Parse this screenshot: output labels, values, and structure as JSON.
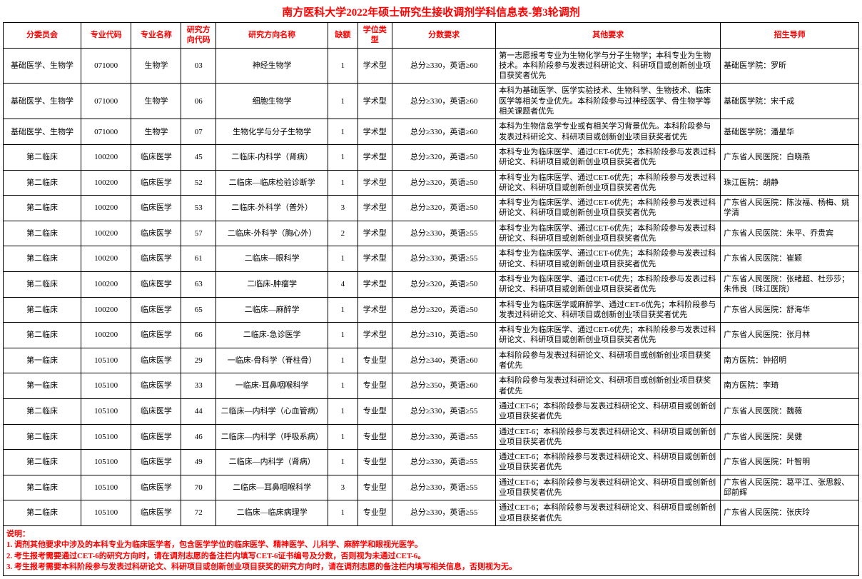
{
  "title": "南方医科大学2022年硕士研究生接收调剂学科信息表-第3轮调剂",
  "title_color": "#ff0000",
  "header_color": "#ff0000",
  "notes_color": "#ff0000",
  "columns": [
    "分委员会",
    "专业代码",
    "专业名称",
    "研究方向代码",
    "研究方向名称",
    "缺额",
    "学位类型",
    "分数要求",
    "其他要求",
    "招生导师"
  ],
  "rows": [
    [
      "基础医学、生物学",
      "071000",
      "生物学",
      "03",
      "神经生物学",
      "1",
      "学术型",
      "总分≥330，英语≥60",
      "第一志愿报考专业为生物化学与分子生物学；本科专业为生物技术。本科阶段参与发表过科研论文、科研项目或创新创业项目获奖者优先",
      "基础医学院：罗昕"
    ],
    [
      "基础医学、生物学",
      "071000",
      "生物学",
      "06",
      "细胞生物学",
      "1",
      "学术型",
      "总分≥330，英语≥60",
      "本科为基础医学、医学实验技术、生物科学、生物技术、临床医学等相关专业优先。本科阶段参与过神经医学、骨生物学等相关课题者优先",
      "基础医学院：宋千成"
    ],
    [
      "基础医学、生物学",
      "071000",
      "生物学",
      "07",
      "生物化学与分子生物学",
      "1",
      "学术型",
      "总分≥330，英语≥60",
      "本科为生物信息学专业或有相关学习背景优先。本科阶段参与发表过科研论文、科研项目或创新创业项目获奖者优先",
      "基础医学院：潘星华"
    ],
    [
      "第二临床",
      "100200",
      "临床医学",
      "45",
      "二临床-内科学（肾病）",
      "1",
      "学术型",
      "总分≥320，英语≥50",
      "本科专业为临床医学、通过CET-6优先；本科阶段参与发表过科研论文、科研项目或创新创业项目获奖者优先",
      "广东省人民医院：白晓燕"
    ],
    [
      "第二临床",
      "100200",
      "临床医学",
      "52",
      "二临床—临床检验诊断学",
      "1",
      "学术型",
      "总分≥320，英语≥50",
      "本科专业为临床医学、通过CET-6优先；本科阶段参与发表过科研论文、科研项目或创新创业项目获奖者优先",
      "珠江医院：胡静"
    ],
    [
      "第二临床",
      "100200",
      "临床医学",
      "53",
      "二临床-外科学（普外）",
      "3",
      "学术型",
      "总分≥320，英语≥50",
      "本科专业为临床医学、通过CET-6优先；本科阶段参与发表过科研论文、科研项目或创新创业项目获奖者优先",
      "广东省人民医院：陈汝福、杨梅、姚学清"
    ],
    [
      "第二临床",
      "100200",
      "临床医学",
      "57",
      "二临床-外科学（胸心外）",
      "2",
      "学术型",
      "总分≥330，英语≥55",
      "本科专业为临床医学、通过CET-6优先；本科阶段参与发表过科研论文、科研项目或创新创业项目获奖者优先",
      "广东省人民医院：朱平、乔贵宾"
    ],
    [
      "第二临床",
      "100200",
      "临床医学",
      "61",
      "二临床—眼科学",
      "1",
      "学术型",
      "总分≥330，英语≥55",
      "本科专业为临床医学、通过CET-6优先；本科阶段参与发表过科研论文、科研项目或创新创业项目获奖者优先",
      "广东省人民医院：崔颖"
    ],
    [
      "第二临床",
      "100200",
      "临床医学",
      "63",
      "二临床-肿瘤学",
      "4",
      "学术型",
      "总分≥320，英语≥50",
      "本科专业为临床医学、通过CET-6优先；本科阶段参与发表过科研论文、科研项目或创新创业项目获奖者优先",
      "广东省人民医院：张绪超、杜莎莎；朱伟良（珠江医院）"
    ],
    [
      "第二临床",
      "100200",
      "临床医学",
      "65",
      "二临床—麻醉学",
      "1",
      "学术型",
      "总分≥320，英语≥50",
      "本科专业为临床医学或麻醉学、通过CET-6优先；本科阶段参与发表过科研论文、科研项目或创新创业项目获奖者优先",
      "广东省人民医院：舒海华"
    ],
    [
      "第二临床",
      "100200",
      "临床医学",
      "66",
      "二临床-急诊医学",
      "1",
      "学术型",
      "总分≥310，英语≥50",
      "本科专业为临床医学、通过CET-6优先；本科阶段参与发表过科研论文、科研项目或创新创业项目获奖者优先",
      "广东省人民医院：张月林"
    ],
    [
      "第一临床",
      "105100",
      "临床医学",
      "29",
      "一临床-骨科学（脊柱骨）",
      "1",
      "专业型",
      "总分≥340，英语≥60",
      "本科阶段参与发表过科研论文、科研项目或创新创业项目获奖者优先",
      "南方医院：钟招明"
    ],
    [
      "第一临床",
      "105100",
      "临床医学",
      "33",
      "一临床-耳鼻咽喉科学",
      "1",
      "专业型",
      "总分≥350，英语≥60",
      "本科阶段参与发表过科研论文、科研项目或创新创业项目获奖者优先",
      "南方医院：李琦"
    ],
    [
      "第二临床",
      "105100",
      "临床医学",
      "44",
      "二临床—内科学（心血管病）",
      "1",
      "专业型",
      "总分≥330，英语≥55",
      "通过CET-6；本科阶段参与发表过科研论文、科研项目或创新创业项目获奖者优先",
      "广东省人民医院：魏薇"
    ],
    [
      "第二临床",
      "105100",
      "临床医学",
      "46",
      "二临床—内科学（呼吸系病）",
      "1",
      "专业型",
      "总分≥330，英语≥55",
      "通过CET-6；本科阶段参与发表过科研论文、科研项目或创新创业项目获奖者优先",
      "广东省人民医院：吴健"
    ],
    [
      "第二临床",
      "105100",
      "临床医学",
      "49",
      "二临床—内科学（肾病）",
      "1",
      "专业型",
      "总分≥330，英语≥55",
      "通过CET-6；本科阶段参与发表过科研论文、科研项目或创新创业项目获奖者优先",
      "广东省人民医院：叶智明"
    ],
    [
      "第二临床",
      "105100",
      "临床医学",
      "70",
      "二临床—耳鼻咽喉科学",
      "3",
      "专业型",
      "总分≥330，英语≥55",
      "通过CET-6；本科阶段参与发表过科研论文、科研项目或创新创业项目获奖者优先",
      "广东省人民医院：葛平江、张思毅、邱前辉"
    ],
    [
      "第二临床",
      "105100",
      "临床医学",
      "72",
      "二临床—临床病理学",
      "1",
      "专业型",
      "总分≥330，英语≥55",
      "通过CET-6；本科阶段参与发表过科研论文、科研项目或创新创业项目获奖者优先",
      "广东省人民医院：张庆玲"
    ]
  ],
  "notes_label": "说明：",
  "notes": [
    "1. 调剂其他要求中涉及的本科专业为临床医学者，包含医学学位的临床医学、精神医学、儿科学、麻醉学和眼视光医学。",
    "2. 考生报考需要通过CET-6的研究方向时，请在调剂志愿的备注栏内填写CET-6证书编号及分数，否则视为未通过CET-6。",
    "3. 考生报考需要本科阶段参与发表过科研论文、科研项目或创新创业项目获奖的研究方向时，请在调剂志愿的备注栏内填写相关信息，否则视为无。"
  ]
}
